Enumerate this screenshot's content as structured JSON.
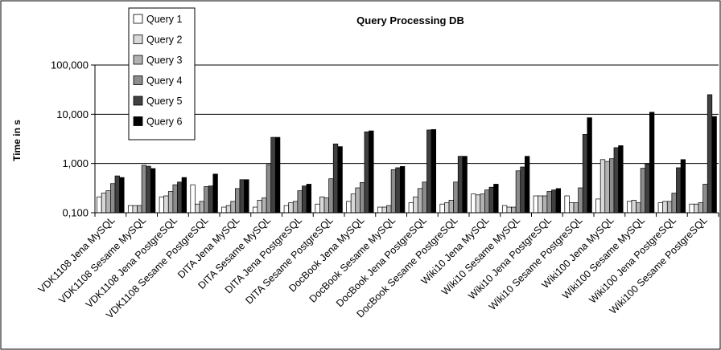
{
  "chart_data": {
    "type": "bar",
    "title": "Query Processing DB",
    "ylabel": "Time in s",
    "xlabel": "",
    "yscale": "log",
    "ylim": [
      0.1,
      100
    ],
    "yticks": [
      0.1,
      1,
      10,
      100
    ],
    "ytick_labels": [
      "0,100",
      "1,000",
      "10,000",
      "100,000"
    ],
    "grid": "horizontal",
    "legend_position": "top-left",
    "categories": [
      "VDK1108 Jena MySQL",
      "VDK1108 Sesame MySQL",
      "VDK1108 Jena PostgreSQL",
      "VDK1108 Sesame PostgreSQL",
      "DITA Jena MySQL",
      "DITA Sesame MySQL",
      "DITA Jena PostgreSQL",
      "DITA Sesame PostgreSQL",
      "DocBook Jena MySQL",
      "DocBook Sesame MySQL",
      "DocBook Jena PostgreSQL",
      "DocBook Sesame PostgreSQL",
      "Wiki10 Jena MySQL",
      "Wiki10 Sesame MySQL",
      "Wiki10 Jena PostgreSQL",
      "Wiki10 Sesame PostgreSQL",
      "Wiki100 Jena MySQL",
      "Wiki100 Sesame MySQL",
      "Wiki100 Jena PostgreSQL",
      "Wiki100 Sesame PostgreSQL"
    ],
    "series": [
      {
        "name": "Query 1",
        "color": "#ffffff",
        "values": [
          0.21,
          0.14,
          0.21,
          0.37,
          0.13,
          0.13,
          0.14,
          0.15,
          0.17,
          0.13,
          0.16,
          0.15,
          0.24,
          0.14,
          0.22,
          0.22,
          0.19,
          0.17,
          0.16,
          0.15
        ]
      },
      {
        "name": "Query 2",
        "color": "#d9d9d9",
        "values": [
          0.25,
          0.14,
          0.22,
          0.15,
          0.14,
          0.18,
          0.16,
          0.21,
          0.24,
          0.13,
          0.21,
          0.16,
          0.23,
          0.13,
          0.22,
          0.16,
          1.2,
          0.18,
          0.17,
          0.15
        ]
      },
      {
        "name": "Query 3",
        "color": "#b2b2b2",
        "values": [
          0.28,
          0.14,
          0.27,
          0.17,
          0.17,
          0.2,
          0.17,
          0.2,
          0.32,
          0.14,
          0.31,
          0.18,
          0.24,
          0.13,
          0.22,
          0.16,
          1.1,
          0.16,
          0.17,
          0.16
        ]
      },
      {
        "name": "Query 4",
        "color": "#8c8c8c",
        "values": [
          0.39,
          0.92,
          0.37,
          0.34,
          0.31,
          0.95,
          0.28,
          0.49,
          0.41,
          0.75,
          0.42,
          0.42,
          0.29,
          0.71,
          0.27,
          0.32,
          1.25,
          0.8,
          0.25,
          0.38
        ]
      },
      {
        "name": "Query 5",
        "color": "#404040",
        "values": [
          0.56,
          0.88,
          0.42,
          0.35,
          0.47,
          3.4,
          0.35,
          2.5,
          4.4,
          0.82,
          4.8,
          1.4,
          0.33,
          0.85,
          0.29,
          3.9,
          2.1,
          0.98,
          0.82,
          25
        ]
      },
      {
        "name": "Query 6",
        "color": "#000000",
        "values": [
          0.52,
          0.79,
          0.52,
          0.61,
          0.47,
          3.4,
          0.38,
          2.2,
          4.6,
          0.87,
          4.9,
          1.4,
          0.38,
          1.4,
          0.31,
          8.5,
          2.3,
          11,
          1.2,
          9
        ]
      }
    ]
  }
}
